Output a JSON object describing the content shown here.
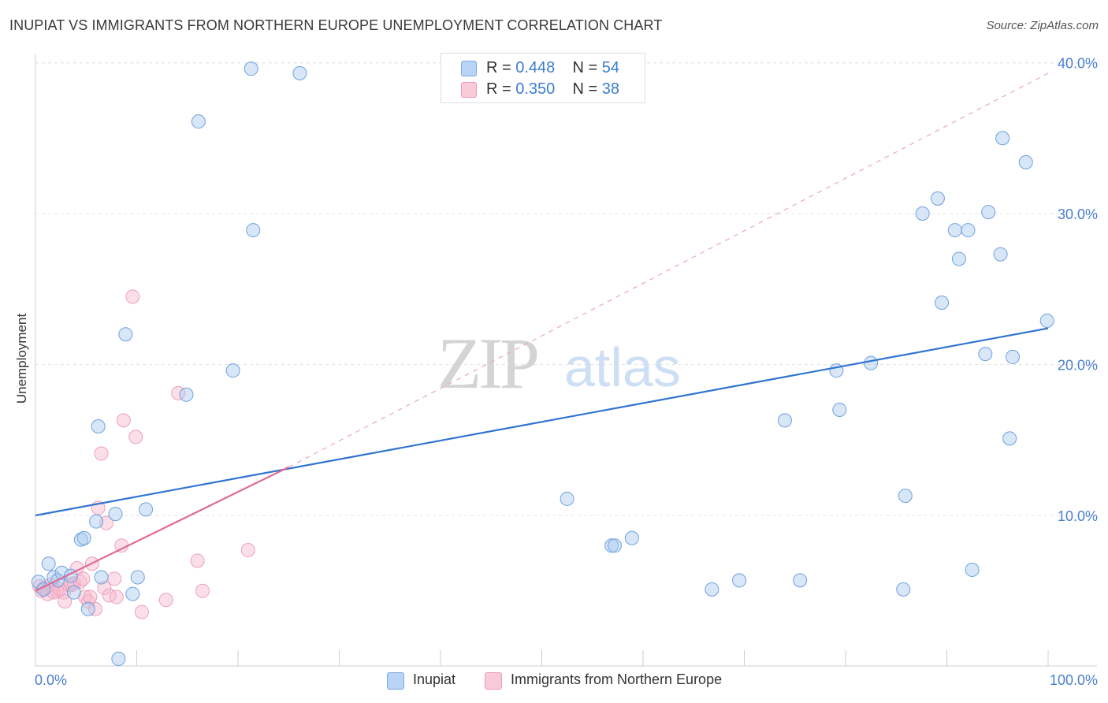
{
  "header": {
    "title": "INUPIAT VS IMMIGRANTS FROM NORTHERN EUROPE UNEMPLOYMENT CORRELATION CHART",
    "source": "Source: ZipAtlas.com"
  },
  "legend": {
    "inupiat": {
      "r_label": "R = ",
      "r_value": "0.448",
      "n_label": "N = ",
      "n_value": "54",
      "name": "Inupiat"
    },
    "immigrants": {
      "r_label": "R = ",
      "r_value": "0.350",
      "n_label": "N = ",
      "n_value": "38",
      "name": "Immigrants from Northern Europe"
    }
  },
  "chart_data": {
    "type": "scatter",
    "title": "INUPIAT VS IMMIGRANTS FROM NORTHERN EUROPE UNEMPLOYMENT CORRELATION CHART",
    "ylabel": "Unemployment",
    "xlabel": "",
    "xlim": [
      0,
      100
    ],
    "ylim": [
      0,
      42
    ],
    "x_tick_labels": [
      "0.0%",
      "100.0%"
    ],
    "y_ticks": [
      10,
      20,
      30,
      40
    ],
    "y_tick_labels": [
      "10.0%",
      "20.0%",
      "30.0%",
      "40.0%"
    ],
    "grid": true,
    "legend_position": "top-center",
    "watermark": "ZIPatlas",
    "colors": {
      "inupiat": "#a9c9f0",
      "inupiat_line": "#2f74d0",
      "immigrants": "#f6b7cb",
      "immigrants_line": "#e06a94",
      "tick_text": "#4a7fd0"
    },
    "series": [
      {
        "name": "Inupiat",
        "regression": {
          "x": [
            0,
            100
          ],
          "y": [
            10.0,
            22.4
          ]
        },
        "points": [
          [
            0.3,
            5.6
          ],
          [
            0.8,
            5.1
          ],
          [
            1.3,
            6.8
          ],
          [
            1.8,
            5.9
          ],
          [
            2.2,
            5.7
          ],
          [
            2.6,
            6.2
          ],
          [
            3.5,
            6.0
          ],
          [
            3.8,
            4.9
          ],
          [
            4.5,
            8.4
          ],
          [
            4.8,
            8.5
          ],
          [
            5.2,
            3.8
          ],
          [
            6.0,
            9.6
          ],
          [
            6.2,
            15.9
          ],
          [
            6.5,
            5.9
          ],
          [
            7.9,
            10.1
          ],
          [
            8.2,
            0.5
          ],
          [
            8.9,
            22.0
          ],
          [
            9.6,
            4.8
          ],
          [
            10.1,
            5.9
          ],
          [
            10.9,
            10.4
          ],
          [
            14.9,
            18.0
          ],
          [
            16.1,
            36.1
          ],
          [
            19.5,
            19.6
          ],
          [
            21.3,
            39.6
          ],
          [
            21.5,
            28.9
          ],
          [
            26.1,
            39.3
          ],
          [
            52.5,
            11.1
          ],
          [
            56.9,
            8.0
          ],
          [
            57.2,
            8.0
          ],
          [
            58.9,
            8.5
          ],
          [
            66.8,
            5.1
          ],
          [
            69.5,
            5.7
          ],
          [
            74.0,
            16.3
          ],
          [
            75.5,
            5.7
          ],
          [
            79.1,
            19.6
          ],
          [
            79.4,
            17.0
          ],
          [
            82.5,
            20.1
          ],
          [
            85.7,
            5.1
          ],
          [
            85.9,
            11.3
          ],
          [
            87.6,
            30.0
          ],
          [
            89.1,
            31.0
          ],
          [
            89.5,
            24.1
          ],
          [
            90.8,
            28.9
          ],
          [
            91.2,
            27.0
          ],
          [
            92.1,
            28.9
          ],
          [
            92.5,
            6.4
          ],
          [
            93.8,
            20.7
          ],
          [
            94.1,
            30.1
          ],
          [
            95.3,
            27.3
          ],
          [
            95.5,
            35.0
          ],
          [
            96.5,
            20.5
          ],
          [
            96.2,
            15.1
          ],
          [
            97.8,
            33.4
          ],
          [
            99.9,
            22.9
          ]
        ]
      },
      {
        "name": "Immigrants from Northern Europe",
        "regression": {
          "x": [
            0,
            25
          ],
          "y": [
            5.0,
            13.2
          ]
        },
        "regression_dashed": {
          "x": [
            25,
            100
          ],
          "y": [
            13.2,
            39.3
          ]
        },
        "points": [
          [
            0.4,
            5.3
          ],
          [
            0.6,
            5.0
          ],
          [
            0.9,
            5.2
          ],
          [
            1.2,
            4.8
          ],
          [
            1.5,
            5.4
          ],
          [
            1.8,
            4.9
          ],
          [
            2.1,
            5.0
          ],
          [
            2.4,
            5.1
          ],
          [
            2.8,
            4.9
          ],
          [
            2.9,
            4.3
          ],
          [
            3.3,
            5.4
          ],
          [
            3.6,
            5.4
          ],
          [
            3.8,
            5.5
          ],
          [
            4.1,
            6.5
          ],
          [
            4.4,
            5.6
          ],
          [
            4.7,
            5.8
          ],
          [
            4.9,
            4.6
          ],
          [
            5.2,
            4.3
          ],
          [
            5.4,
            4.6
          ],
          [
            5.6,
            6.8
          ],
          [
            5.9,
            3.8
          ],
          [
            6.2,
            10.5
          ],
          [
            6.5,
            14.1
          ],
          [
            6.8,
            5.2
          ],
          [
            7.0,
            9.5
          ],
          [
            7.3,
            4.7
          ],
          [
            7.8,
            5.8
          ],
          [
            8.0,
            4.6
          ],
          [
            8.5,
            8.0
          ],
          [
            8.7,
            16.3
          ],
          [
            9.6,
            24.5
          ],
          [
            9.9,
            15.2
          ],
          [
            10.5,
            3.6
          ],
          [
            12.9,
            4.4
          ],
          [
            14.1,
            18.1
          ],
          [
            16.0,
            7.0
          ],
          [
            16.5,
            5.0
          ],
          [
            21.0,
            7.7
          ]
        ]
      }
    ]
  }
}
